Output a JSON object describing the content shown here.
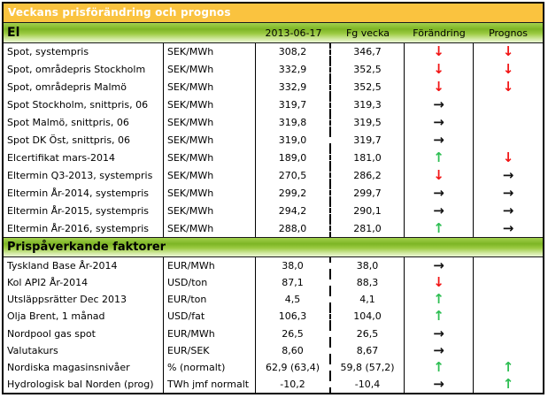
{
  "title": "Veckans prisförändring och prognos",
  "columns": {
    "date": "2013-06-17",
    "prev": "Fg vecka",
    "change": "Förändring",
    "forecast": "Prognos"
  },
  "arrows": {
    "down": {
      "glyph": "↓",
      "meaning": "decrease",
      "color": "#f21515"
    },
    "up": {
      "glyph": "↑",
      "meaning": "increase",
      "color": "#2dbe52"
    },
    "flat": {
      "glyph": "→",
      "meaning": "unchanged",
      "color": "#111111"
    }
  },
  "colors": {
    "title_bg": "#FAC33F",
    "title_text": "#ffffff",
    "band_green_top": "#a3d14d",
    "band_green_mid": "#7db525",
    "band_green_bottom": "#e9f5d2",
    "border": "#000000"
  },
  "sections": [
    {
      "header": "El",
      "rows": [
        {
          "label": "Spot, systempris",
          "unit": "SEK/MWh",
          "now": "308,2",
          "prev": "346,7",
          "change": "down",
          "forecast": "down"
        },
        {
          "label": "Spot, områdepris Stockholm",
          "unit": "SEK/MWh",
          "now": "332,9",
          "prev": "352,5",
          "change": "down",
          "forecast": "down"
        },
        {
          "label": "Spot, områdepris Malmö",
          "unit": "SEK/MWh",
          "now": "332,9",
          "prev": "352,5",
          "change": "down",
          "forecast": "down"
        },
        {
          "label": "Spot Stockholm, snittpris,  06",
          "unit": "SEK/MWh",
          "now": "319,7",
          "prev": "319,3",
          "change": "flat",
          "forecast": ""
        },
        {
          "label": "Spot Malmö, snittpris,  06",
          "unit": "SEK/MWh",
          "now": "319,8",
          "prev": "319,5",
          "change": "flat",
          "forecast": ""
        },
        {
          "label": "Spot DK Öst, snittpris,  06",
          "unit": "SEK/MWh",
          "now": "319,0",
          "prev": "319,7",
          "change": "flat",
          "forecast": ""
        },
        {
          "label": "Elcertifikat mars-2014",
          "unit": "SEK/MWh",
          "now": "189,0",
          "prev": "181,0",
          "change": "up",
          "forecast": "down"
        },
        {
          "label": "Eltermin Q3-2013, systempris",
          "unit": "SEK/MWh",
          "now": "270,5",
          "prev": "286,2",
          "change": "down",
          "forecast": "flat"
        },
        {
          "label": "Eltermin År-2014, systempris",
          "unit": "SEK/MWh",
          "now": "299,2",
          "prev": "299,7",
          "change": "flat",
          "forecast": "flat"
        },
        {
          "label": "Eltermin År-2015, systempris",
          "unit": "SEK/MWh",
          "now": "294,2",
          "prev": "290,1",
          "change": "flat",
          "forecast": "flat"
        },
        {
          "label": "Eltermin År-2016, systempris",
          "unit": "SEK/MWh",
          "now": "288,0",
          "prev": "281,0",
          "change": "up",
          "forecast": "flat"
        }
      ]
    },
    {
      "header": "Prispåverkande faktorer",
      "rows": [
        {
          "label": "Tyskland Base År-2014",
          "unit": "EUR/MWh",
          "now": "38,0",
          "prev": "38,0",
          "change": "flat",
          "forecast": ""
        },
        {
          "label": "Kol API2 År-2014",
          "unit": "USD/ton",
          "now": "87,1",
          "prev": "88,3",
          "change": "down",
          "forecast": ""
        },
        {
          "label": "Utsläppsrätter Dec 2013",
          "unit": "EUR/ton",
          "now": "4,5",
          "prev": "4,1",
          "change": "up",
          "forecast": ""
        },
        {
          "label": "Olja Brent, 1 månad",
          "unit": "USD/fat",
          "now": "106,3",
          "prev": "104,0",
          "change": "up",
          "forecast": ""
        },
        {
          "label": "Nordpool gas spot",
          "unit": "EUR/MWh",
          "now": "26,5",
          "prev": "26,5",
          "change": "flat",
          "forecast": ""
        },
        {
          "label": "Valutakurs",
          "unit": "EUR/SEK",
          "now": "8,60",
          "prev": "8,67",
          "change": "flat",
          "forecast": ""
        },
        {
          "label": "Nordiska magasinsnivåer",
          "unit": "%  (normalt)",
          "now": "62,9 (63,4)",
          "prev": "59,8 (57,2)",
          "change": "up",
          "forecast": "up"
        },
        {
          "label": "Hydrologisk bal Norden (prog)",
          "unit": "TWh jmf normalt",
          "now": "-10,2",
          "prev": "-10,4",
          "change": "flat",
          "forecast": "up"
        }
      ]
    }
  ]
}
